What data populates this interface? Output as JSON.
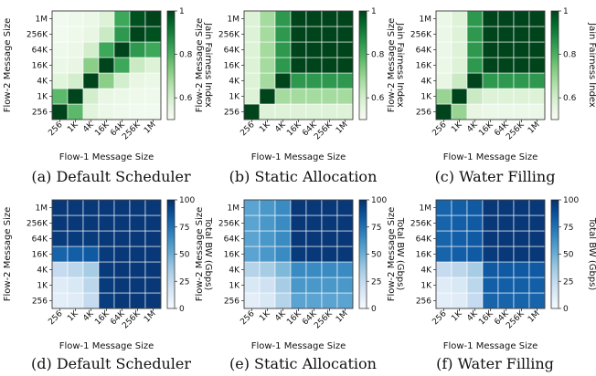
{
  "sizes": [
    "256",
    "1K",
    "4K",
    "16K",
    "64K",
    "256K",
    "1M"
  ],
  "chart_data": [
    {
      "type": "heatmap",
      "panel": "a",
      "caption": "(a) Default Scheduler",
      "xlabel": "Flow-1 Message Size",
      "ylabel": "Flow-2 Message Size",
      "colorbar_label": "Jain Fairness Index",
      "colormap": "greens",
      "vmin": 0.5,
      "vmax": 1.0,
      "colorbar_ticks": [
        0.6,
        0.8,
        1.0
      ],
      "x": [
        "256",
        "1K",
        "4K",
        "16K",
        "64K",
        "256K",
        "1M"
      ],
      "y": [
        "256",
        "1K",
        "4K",
        "16K",
        "64K",
        "256K",
        "1M"
      ],
      "values": [
        [
          1.0,
          0.78,
          0.57,
          0.54,
          0.53,
          0.52,
          0.52
        ],
        [
          0.78,
          1.0,
          0.6,
          0.55,
          0.54,
          0.53,
          0.53
        ],
        [
          0.57,
          0.6,
          1.0,
          0.72,
          0.6,
          0.55,
          0.54
        ],
        [
          0.54,
          0.55,
          0.72,
          1.0,
          0.82,
          0.62,
          0.58
        ],
        [
          0.53,
          0.54,
          0.6,
          0.82,
          1.0,
          0.85,
          0.82
        ],
        [
          0.52,
          0.53,
          0.55,
          0.62,
          0.85,
          1.0,
          0.98
        ],
        [
          0.52,
          0.53,
          0.54,
          0.58,
          0.82,
          0.98,
          1.0
        ]
      ]
    },
    {
      "type": "heatmap",
      "panel": "b",
      "caption": "(b) Static Allocation",
      "xlabel": "Flow-1 Message Size",
      "ylabel": "Flow-2 Message Size",
      "colorbar_label": "Jain Fairness Index",
      "colormap": "greens",
      "vmin": 0.5,
      "vmax": 1.0,
      "colorbar_ticks": [
        0.6,
        0.8,
        1.0
      ],
      "x": [
        "256",
        "1K",
        "4K",
        "16K",
        "64K",
        "256K",
        "1M"
      ],
      "y": [
        "256",
        "1K",
        "4K",
        "16K",
        "64K",
        "256K",
        "1M"
      ],
      "values": [
        [
          1.0,
          0.58,
          0.58,
          0.58,
          0.58,
          0.58,
          0.58
        ],
        [
          0.58,
          1.0,
          0.68,
          0.68,
          0.68,
          0.68,
          0.68
        ],
        [
          0.58,
          0.68,
          1.0,
          0.85,
          0.85,
          0.85,
          0.85
        ],
        [
          0.58,
          0.68,
          0.85,
          1.0,
          1.0,
          1.0,
          1.0
        ],
        [
          0.58,
          0.68,
          0.85,
          1.0,
          1.0,
          1.0,
          1.0
        ],
        [
          0.58,
          0.68,
          0.85,
          1.0,
          1.0,
          1.0,
          1.0
        ],
        [
          0.58,
          0.68,
          0.85,
          1.0,
          1.0,
          1.0,
          1.0
        ]
      ]
    },
    {
      "type": "heatmap",
      "panel": "c",
      "caption": "(c) Water Filling",
      "xlabel": "Flow-1 Message Size",
      "ylabel": "Flow-2 Message Size",
      "colorbar_label": "Jain Fairness Index",
      "colormap": "greens",
      "vmin": 0.5,
      "vmax": 1.0,
      "colorbar_ticks": [
        0.6,
        0.8,
        1.0
      ],
      "x": [
        "256",
        "1K",
        "4K",
        "16K",
        "64K",
        "256K",
        "1M"
      ],
      "y": [
        "256",
        "1K",
        "4K",
        "16K",
        "64K",
        "256K",
        "1M"
      ],
      "values": [
        [
          1.0,
          0.7,
          0.55,
          0.54,
          0.54,
          0.54,
          0.54
        ],
        [
          0.7,
          1.0,
          0.62,
          0.58,
          0.58,
          0.58,
          0.58
        ],
        [
          0.55,
          0.62,
          1.0,
          0.85,
          0.85,
          0.85,
          0.85
        ],
        [
          0.54,
          0.58,
          0.85,
          1.0,
          1.0,
          1.0,
          1.0
        ],
        [
          0.54,
          0.58,
          0.85,
          1.0,
          1.0,
          1.0,
          1.0
        ],
        [
          0.54,
          0.58,
          0.85,
          1.0,
          1.0,
          1.0,
          1.0
        ],
        [
          0.54,
          0.58,
          0.85,
          1.0,
          1.0,
          1.0,
          1.0
        ]
      ]
    },
    {
      "type": "heatmap",
      "panel": "d",
      "caption": "(d) Default Scheduler",
      "xlabel": "Flow-1 Message Size",
      "ylabel": "Flow-2 Message Size",
      "colorbar_label": "Total BW (Gbps)",
      "colormap": "blues",
      "vmin": 0,
      "vmax": 100,
      "colorbar_ticks": [
        0,
        25,
        50,
        75,
        100
      ],
      "x": [
        "256",
        "1K",
        "4K",
        "16K",
        "64K",
        "256K",
        "1M"
      ],
      "y": [
        "256",
        "1K",
        "4K",
        "16K",
        "64K",
        "256K",
        "1M"
      ],
      "values": [
        [
          10,
          12,
          25,
          95,
          97,
          97,
          97
        ],
        [
          12,
          15,
          28,
          96,
          97,
          97,
          97
        ],
        [
          25,
          28,
          35,
          96,
          97,
          97,
          97
        ],
        [
          80,
          82,
          84,
          96,
          97,
          97,
          97
        ],
        [
          96,
          96,
          96,
          97,
          97,
          97,
          97
        ],
        [
          97,
          97,
          97,
          97,
          97,
          97,
          97
        ],
        [
          97,
          97,
          97,
          97,
          97,
          97,
          97
        ]
      ]
    },
    {
      "type": "heatmap",
      "panel": "e",
      "caption": "(e) Static Allocation",
      "xlabel": "Flow-1 Message Size",
      "ylabel": "Flow-2 Message Size",
      "colorbar_label": "Total BW (Gbps)",
      "colormap": "blues",
      "vmin": 0,
      "vmax": 100,
      "colorbar_ticks": [
        0,
        25,
        50,
        75,
        100
      ],
      "x": [
        "256",
        "1K",
        "4K",
        "16K",
        "64K",
        "256K",
        "1M"
      ],
      "y": [
        "256",
        "1K",
        "4K",
        "16K",
        "64K",
        "256K",
        "1M"
      ],
      "values": [
        [
          10,
          15,
          30,
          55,
          55,
          55,
          55
        ],
        [
          15,
          20,
          35,
          60,
          60,
          60,
          60
        ],
        [
          30,
          35,
          45,
          65,
          65,
          65,
          65
        ],
        [
          55,
          60,
          65,
          96,
          97,
          97,
          97
        ],
        [
          55,
          60,
          65,
          97,
          97,
          97,
          97
        ],
        [
          55,
          60,
          65,
          97,
          97,
          97,
          97
        ],
        [
          55,
          60,
          65,
          97,
          97,
          97,
          97
        ]
      ]
    },
    {
      "type": "heatmap",
      "panel": "f",
      "caption": "(f) Water Filling",
      "xlabel": "Flow-1 Message Size",
      "ylabel": "Flow-2 Message Size",
      "colorbar_label": "Total BW (Gbps)",
      "colormap": "blues",
      "vmin": 0,
      "vmax": 100,
      "colorbar_ticks": [
        0,
        25,
        50,
        75,
        100
      ],
      "x": [
        "256",
        "1K",
        "4K",
        "16K",
        "64K",
        "256K",
        "1M"
      ],
      "y": [
        "256",
        "1K",
        "4K",
        "16K",
        "64K",
        "256K",
        "1M"
      ],
      "values": [
        [
          10,
          12,
          25,
          80,
          80,
          80,
          80
        ],
        [
          12,
          15,
          28,
          82,
          82,
          82,
          82
        ],
        [
          25,
          28,
          35,
          84,
          84,
          84,
          84
        ],
        [
          80,
          82,
          84,
          96,
          97,
          97,
          97
        ],
        [
          80,
          82,
          84,
          97,
          97,
          97,
          97
        ],
        [
          80,
          82,
          84,
          97,
          97,
          97,
          97
        ],
        [
          80,
          82,
          84,
          97,
          97,
          97,
          97
        ]
      ]
    }
  ]
}
